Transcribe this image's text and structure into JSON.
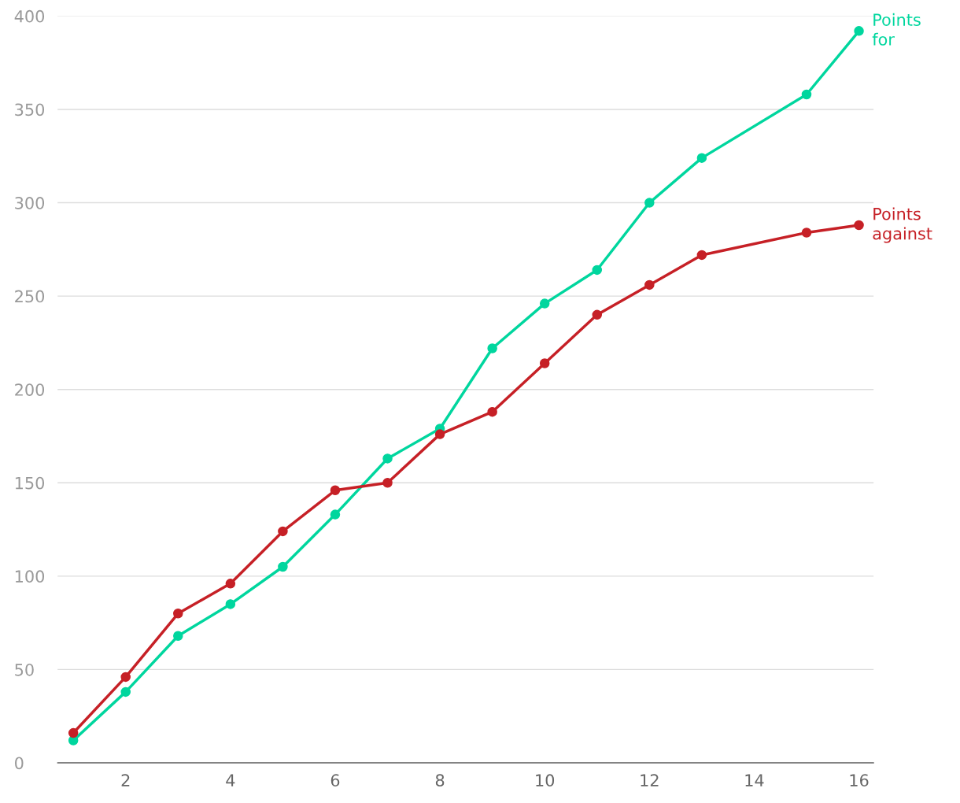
{
  "chart_data": {
    "type": "line",
    "x": [
      1,
      2,
      3,
      4,
      5,
      6,
      7,
      8,
      9,
      10,
      11,
      12,
      13,
      15,
      16
    ],
    "series": [
      {
        "name": "Points for",
        "color": "#00d69e",
        "values": [
          12,
          38,
          68,
          85,
          105,
          133,
          163,
          179,
          222,
          246,
          264,
          300,
          324,
          358,
          392
        ]
      },
      {
        "name": "Points against",
        "color": "#c62026",
        "values": [
          16,
          46,
          80,
          96,
          124,
          146,
          150,
          176,
          188,
          214,
          240,
          256,
          272,
          284,
          288
        ]
      }
    ],
    "xlim": [
      0.7,
      16.28
    ],
    "xticks": [
      2,
      4,
      6,
      8,
      10,
      12,
      14,
      16
    ],
    "ylim": [
      0,
      400
    ],
    "yticks": [
      0,
      50,
      100,
      150,
      200,
      250,
      300,
      350,
      400
    ],
    "grid": "y",
    "marker": "circle",
    "line_style": "solid",
    "legend": false
  }
}
